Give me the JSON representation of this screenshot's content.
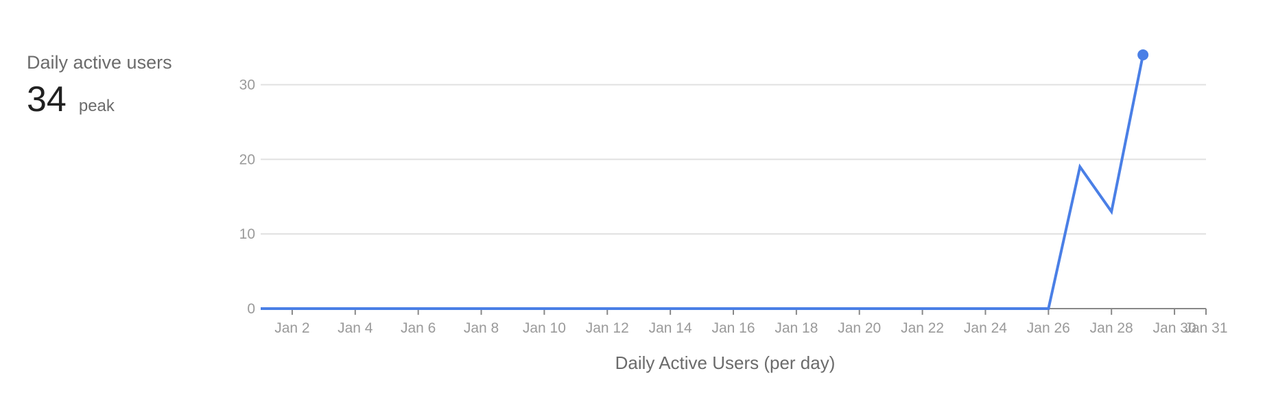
{
  "summary": {
    "label": "Daily active users",
    "value": "34",
    "unit": "peak"
  },
  "chart_data": {
    "type": "line",
    "title": "",
    "xlabel": "Daily Active Users (per day)",
    "ylabel": "",
    "x": [
      "Jan 1",
      "Jan 2",
      "Jan 3",
      "Jan 4",
      "Jan 5",
      "Jan 6",
      "Jan 7",
      "Jan 8",
      "Jan 9",
      "Jan 10",
      "Jan 11",
      "Jan 12",
      "Jan 13",
      "Jan 14",
      "Jan 15",
      "Jan 16",
      "Jan 17",
      "Jan 18",
      "Jan 19",
      "Jan 20",
      "Jan 21",
      "Jan 22",
      "Jan 23",
      "Jan 24",
      "Jan 25",
      "Jan 26",
      "Jan 27",
      "Jan 28",
      "Jan 29"
    ],
    "series": [
      {
        "values": [
          0,
          0,
          0,
          0,
          0,
          0,
          0,
          0,
          0,
          0,
          0,
          0,
          0,
          0,
          0,
          0,
          0,
          0,
          0,
          0,
          0,
          0,
          0,
          0,
          0,
          0,
          19,
          13,
          34
        ]
      }
    ],
    "xlim": [
      "Jan 1",
      "Jan 31"
    ],
    "ylim": [
      0,
      34
    ],
    "x_tick_labels": [
      "Jan 2",
      "Jan 4",
      "Jan 6",
      "Jan 8",
      "Jan 10",
      "Jan 12",
      "Jan 14",
      "Jan 16",
      "Jan 18",
      "Jan 20",
      "Jan 22",
      "Jan 24",
      "Jan 26",
      "Jan 28",
      "Jan 30",
      "Jan 31"
    ],
    "y_ticks": [
      0,
      10,
      20,
      30
    ],
    "grid": true,
    "legend": "none",
    "line_color": "#4a7fe6",
    "grid_color": "#e0e0e0",
    "end_marker": true
  }
}
